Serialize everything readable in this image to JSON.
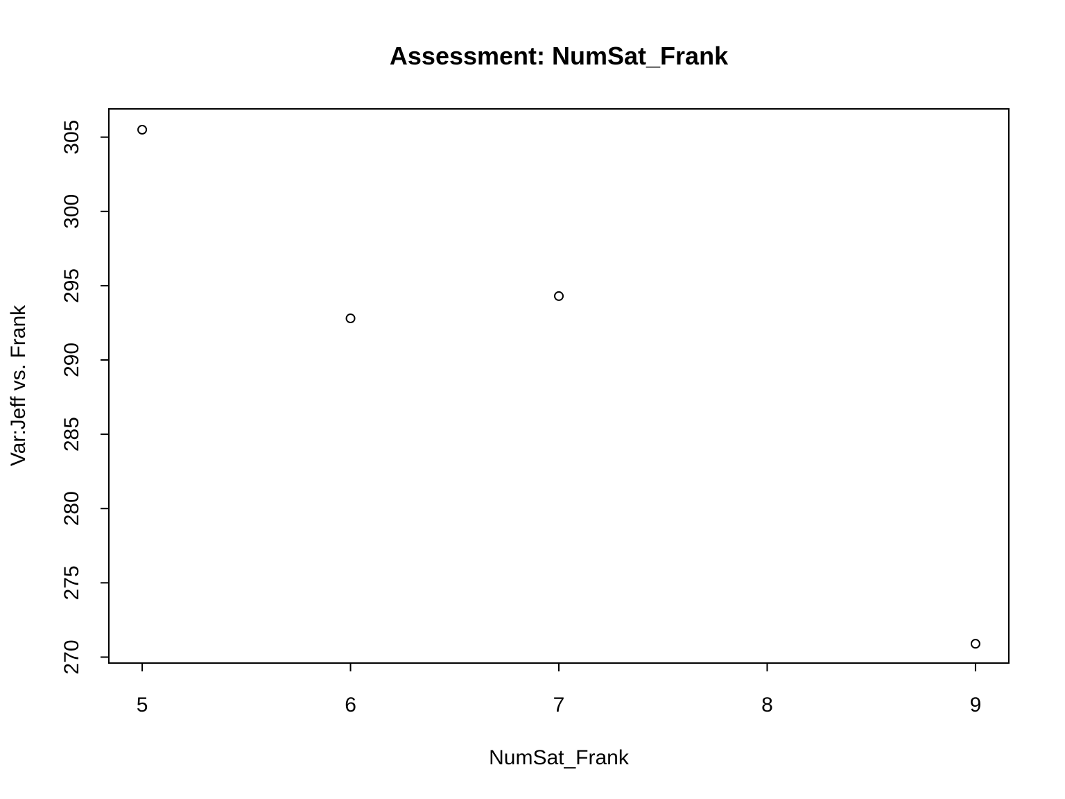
{
  "chart_data": {
    "type": "scatter",
    "title": "Assessment: NumSat_Frank",
    "xlabel": "NumSat_Frank",
    "ylabel": "Var:Jeff vs. Frank",
    "x_ticks": [
      5,
      6,
      7,
      8,
      9
    ],
    "y_ticks": [
      270,
      275,
      280,
      285,
      290,
      295,
      300,
      305
    ],
    "xlim": [
      4.84,
      9.16
    ],
    "ylim": [
      269.6,
      306.9
    ],
    "grid": false,
    "legend": "none",
    "points": [
      {
        "x": 5,
        "y": 305.5
      },
      {
        "x": 6,
        "y": 292.8
      },
      {
        "x": 7,
        "y": 294.3
      },
      {
        "x": 9,
        "y": 270.9
      }
    ],
    "colors": {
      "marker": "#000000",
      "axis": "#000000",
      "background": "#ffffff"
    }
  }
}
